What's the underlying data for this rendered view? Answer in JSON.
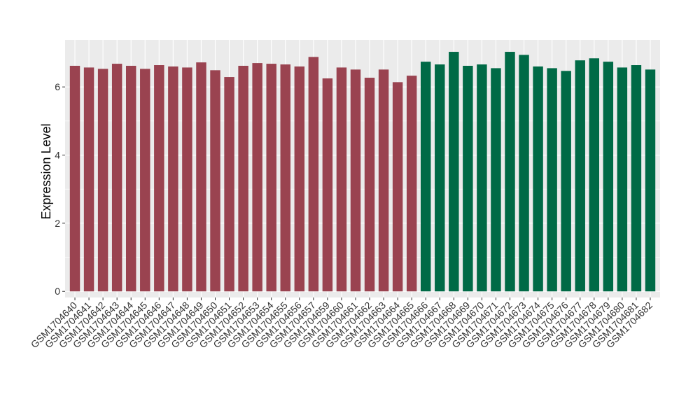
{
  "chart_data": {
    "type": "bar",
    "y_label": "Expression Level",
    "categories": [
      "GSM1704640",
      "GSM1704641",
      "GSM1704642",
      "GSM1704643",
      "GSM1704644",
      "GSM1704645",
      "GSM1704646",
      "GSM1704647",
      "GSM1704648",
      "GSM1704649",
      "GSM1704650",
      "GSM1704651",
      "GSM1704652",
      "GSM1704653",
      "GSM1704654",
      "GSM1704655",
      "GSM1704656",
      "GSM1704657",
      "GSM1704659",
      "GSM1704660",
      "GSM1704661",
      "GSM1704662",
      "GSM1704663",
      "GSM1704664",
      "GSM1704665",
      "GSM1704666",
      "GSM1704667",
      "GSM1704668",
      "GSM1704669",
      "GSM1704670",
      "GSM1704671",
      "GSM1704672",
      "GSM1704673",
      "GSM1704674",
      "GSM1704675",
      "GSM1704676",
      "GSM1704677",
      "GSM1704678",
      "GSM1704679",
      "GSM1704680",
      "GSM1704681",
      "GSM1704682"
    ],
    "values": [
      6.62,
      6.57,
      6.53,
      6.68,
      6.62,
      6.53,
      6.64,
      6.6,
      6.57,
      6.72,
      6.49,
      6.29,
      6.62,
      6.7,
      6.68,
      6.66,
      6.6,
      6.88,
      6.25,
      6.57,
      6.51,
      6.27,
      6.51,
      6.14,
      6.33,
      6.74,
      6.66,
      7.03,
      6.62,
      6.66,
      6.55,
      7.03,
      6.94,
      6.6,
      6.55,
      6.47,
      6.78,
      6.84,
      6.74,
      6.57,
      6.64,
      6.51
    ],
    "colors": [
      "#9a4350",
      "#9a4350",
      "#9a4350",
      "#9a4350",
      "#9a4350",
      "#9a4350",
      "#9a4350",
      "#9a4350",
      "#9a4350",
      "#9a4350",
      "#9a4350",
      "#9a4350",
      "#9a4350",
      "#9a4350",
      "#9a4350",
      "#9a4350",
      "#9a4350",
      "#9a4350",
      "#9a4350",
      "#9a4350",
      "#9a4350",
      "#9a4350",
      "#9a4350",
      "#9a4350",
      "#9a4350",
      "#006a46",
      "#006a46",
      "#006a46",
      "#006a46",
      "#006a46",
      "#006a46",
      "#006a46",
      "#006a46",
      "#006a46",
      "#006a46",
      "#006a46",
      "#006a46",
      "#006a46",
      "#006a46",
      "#006a46",
      "#006a46",
      "#006a46"
    ],
    "ylim": [
      -0.18,
      7.38
    ],
    "yticks": [
      0,
      2,
      4,
      6
    ],
    "grid": true
  }
}
